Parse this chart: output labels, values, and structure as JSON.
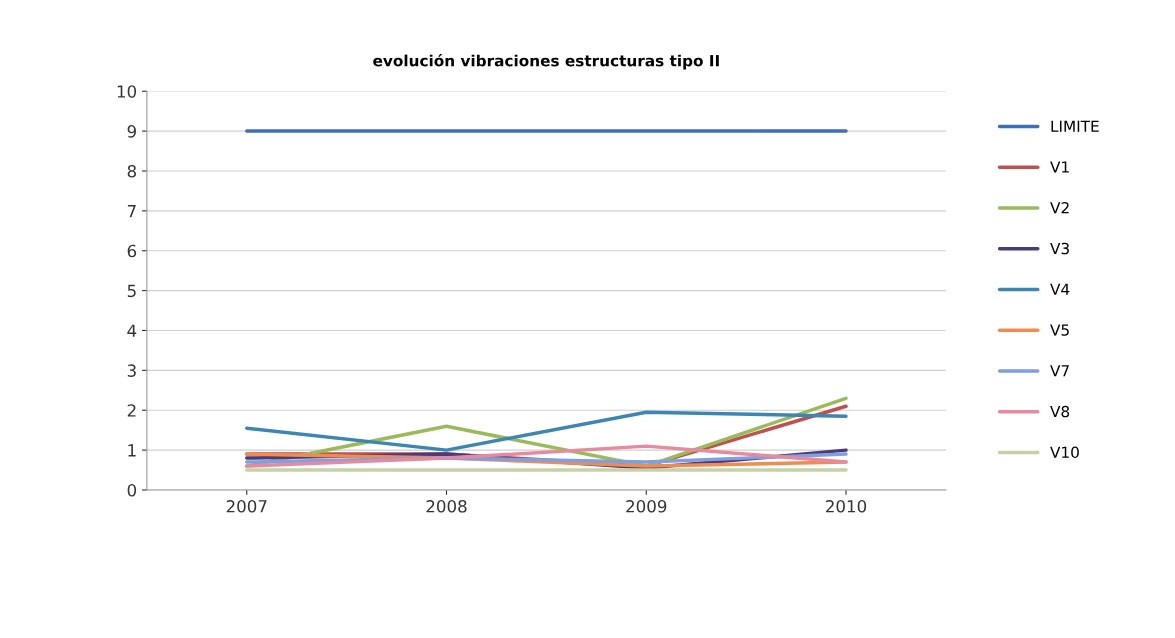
{
  "chart_data": {
    "type": "line",
    "title": "evolución vibraciones estructuras tipo II",
    "categories": [
      "2007",
      "2008",
      "2009",
      "2010"
    ],
    "series": [
      {
        "name": "LIMITE",
        "color": "#3f6fb5",
        "values": [
          9,
          9,
          9,
          9
        ]
      },
      {
        "name": "V1",
        "color": "#c0504d",
        "values": [
          0.9,
          0.9,
          0.6,
          2.1
        ]
      },
      {
        "name": "V2",
        "color": "#9bbb59",
        "values": [
          0.6,
          1.6,
          0.6,
          2.3
        ]
      },
      {
        "name": "V3",
        "color": "#4b3b7a",
        "values": [
          0.8,
          0.9,
          0.55,
          1.0
        ]
      },
      {
        "name": "V4",
        "color": "#3c86b4",
        "values": [
          1.55,
          1.0,
          1.95,
          1.85
        ]
      },
      {
        "name": "V5",
        "color": "#f08c50",
        "values": [
          0.9,
          0.8,
          0.6,
          0.7
        ]
      },
      {
        "name": "V7",
        "color": "#7f9fe0",
        "values": [
          0.7,
          0.8,
          0.7,
          0.9
        ]
      },
      {
        "name": "V8",
        "color": "#e68aa0",
        "values": [
          0.6,
          0.8,
          1.1,
          0.7
        ]
      },
      {
        "name": "V10",
        "color": "#c8d0a8",
        "values": [
          0.5,
          0.5,
          0.5,
          0.5
        ]
      }
    ],
    "ylim": [
      0,
      10
    ],
    "yticks": [
      0,
      1,
      2,
      3,
      4,
      5,
      6,
      7,
      8,
      9,
      10
    ],
    "grid": "y",
    "legend": "right"
  }
}
